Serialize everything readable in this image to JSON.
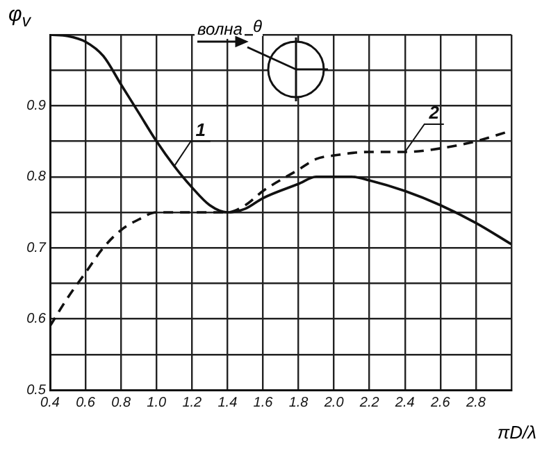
{
  "chart_data": {
    "type": "line",
    "xlabel": "πD/λ",
    "ylabel": "φ$_{v}$",
    "annotations": [
      "волна",
      "θ"
    ],
    "xlim": [
      0.4,
      3.0
    ],
    "ylim": [
      0.5,
      1.0
    ],
    "xticks": [
      0.4,
      0.6,
      0.8,
      "1.0",
      1.2,
      1.4,
      1.6,
      1.8,
      "2.0",
      2.2,
      2.4,
      2.6,
      2.8,
      {
        "value": 3.0,
        "label": null
      }
    ],
    "yticks": [
      0.5,
      {
        "value": 0.55,
        "label": null
      },
      0.6,
      {
        "value": 0.65,
        "label": null
      },
      0.7,
      {
        "value": 0.75,
        "label": null
      },
      0.8,
      {
        "value": 0.85,
        "label": null
      },
      0.9,
      {
        "value": 0.95,
        "label": null
      },
      {
        "value": 1.0,
        "label": null
      }
    ],
    "grid": true,
    "marker": "none",
    "series": [
      {
        "name": "1",
        "color": "#111111",
        "line_style": "solid",
        "x": [
          0.4,
          0.5,
          0.6,
          0.7,
          0.8,
          0.9,
          1.0,
          1.1,
          1.2,
          1.3,
          1.4,
          1.5,
          1.6,
          1.8,
          1.9,
          2.0,
          2.1,
          2.2,
          2.4,
          2.6,
          2.8,
          3.0
        ],
        "values": [
          1.0,
          0.998,
          0.99,
          0.97,
          0.93,
          0.89,
          0.85,
          0.815,
          0.785,
          0.76,
          0.75,
          0.755,
          0.77,
          0.79,
          0.8,
          0.8,
          0.8,
          0.795,
          0.78,
          0.76,
          0.735,
          0.705
        ]
      },
      {
        "name": "2",
        "color": "#111111",
        "line_style": "dashed",
        "x": [
          0.4,
          0.5,
          0.6,
          0.7,
          0.8,
          0.9,
          1.0,
          1.2,
          1.4,
          1.5,
          1.6,
          1.8,
          1.9,
          2.0,
          2.2,
          2.4,
          2.6,
          2.8,
          3.0
        ],
        "values": [
          0.59,
          0.63,
          0.665,
          0.7,
          0.725,
          0.74,
          0.75,
          0.75,
          0.75,
          0.76,
          0.78,
          0.81,
          0.825,
          0.83,
          0.835,
          0.835,
          0.84,
          0.85,
          0.865
        ]
      }
    ]
  }
}
